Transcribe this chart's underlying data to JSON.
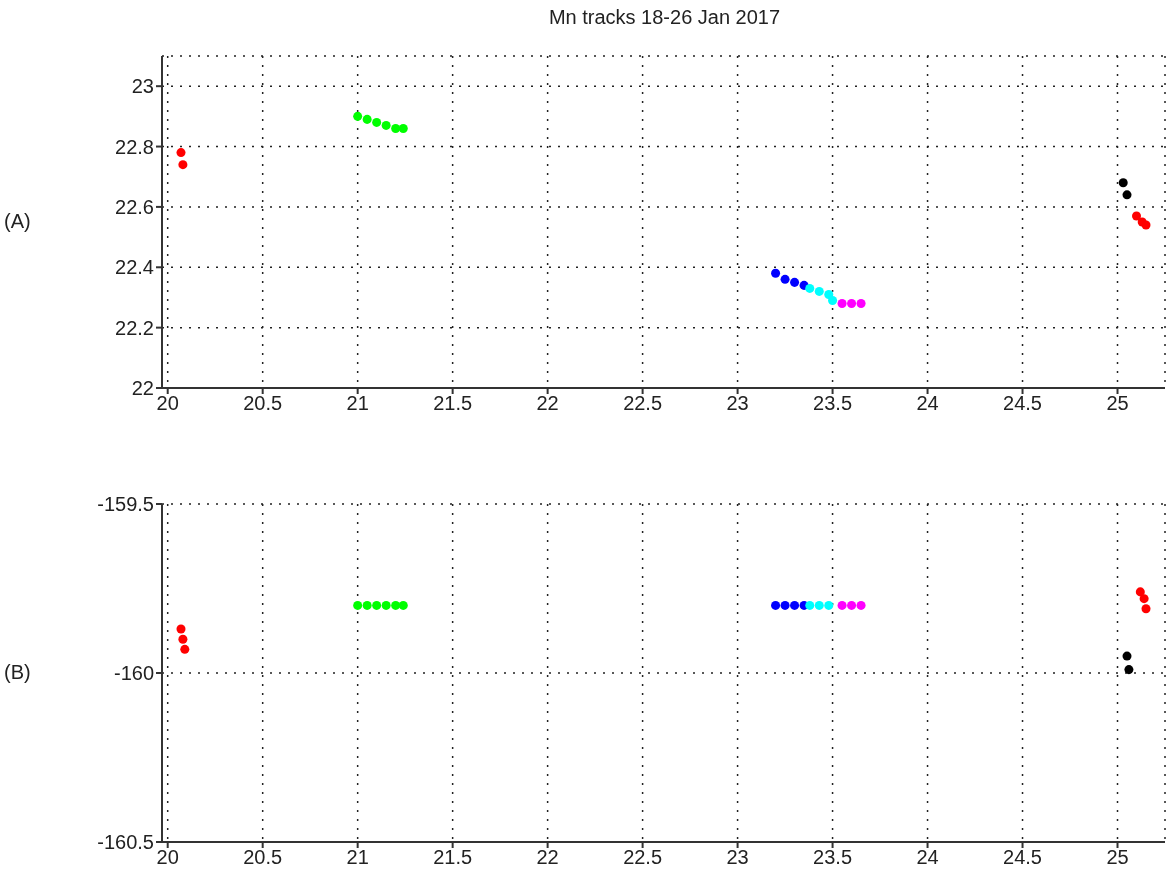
{
  "chart_data": [
    {
      "type": "scatter",
      "title": "Mn tracks 18-26 Jan 2017",
      "annotations": [
        "(A)"
      ],
      "xlim": [
        19.97,
        25.25
      ],
      "xticks": [
        20,
        20.5,
        21,
        21.5,
        22,
        22.5,
        23,
        23.5,
        24,
        24.5,
        25
      ],
      "ylim": [
        22,
        23.1
      ],
      "yticks": [
        22,
        22.2,
        22.4,
        22.6,
        22.8,
        23
      ],
      "grid": true,
      "marker": "circle",
      "series": [
        {
          "color": "#ff0000",
          "x": [
            20.07,
            20.08
          ],
          "values": [
            22.78,
            22.74
          ]
        },
        {
          "color": "#00ff00",
          "x": [
            21.0,
            21.05,
            21.1,
            21.15,
            21.2,
            21.24
          ],
          "values": [
            22.9,
            22.89,
            22.88,
            22.87,
            22.86,
            22.86
          ]
        },
        {
          "color": "#0000ff",
          "x": [
            23.2,
            23.25,
            23.3,
            23.35
          ],
          "values": [
            22.38,
            22.36,
            22.35,
            22.34
          ]
        },
        {
          "color": "#00ffff",
          "x": [
            23.38,
            23.43,
            23.48,
            23.5
          ],
          "values": [
            22.33,
            22.32,
            22.31,
            22.29
          ]
        },
        {
          "color": "#ff00ff",
          "x": [
            23.55,
            23.6,
            23.65
          ],
          "values": [
            22.28,
            22.28,
            22.28
          ]
        },
        {
          "color": "#000000",
          "x": [
            25.03,
            25.05
          ],
          "values": [
            22.68,
            22.64
          ]
        },
        {
          "color": "#ff0000",
          "x": [
            25.1,
            25.13,
            25.15
          ],
          "values": [
            22.57,
            22.55,
            22.54
          ]
        }
      ]
    },
    {
      "type": "scatter",
      "annotations": [
        "(B)"
      ],
      "xlim": [
        19.97,
        25.25
      ],
      "xticks": [
        20,
        20.5,
        21,
        21.5,
        22,
        22.5,
        23,
        23.5,
        24,
        24.5,
        25
      ],
      "ylim": [
        -160.5,
        -159.5
      ],
      "yticks": [
        -160.5,
        -160,
        -159.5
      ],
      "grid": true,
      "marker": "circle",
      "series": [
        {
          "color": "#ff0000",
          "x": [
            20.07,
            20.08,
            20.09
          ],
          "values": [
            -159.87,
            -159.9,
            -159.93
          ]
        },
        {
          "color": "#00ff00",
          "x": [
            21.0,
            21.05,
            21.1,
            21.15,
            21.2,
            21.24
          ],
          "values": [
            -159.8,
            -159.8,
            -159.8,
            -159.8,
            -159.8,
            -159.8
          ]
        },
        {
          "color": "#0000ff",
          "x": [
            23.2,
            23.25,
            23.3,
            23.35
          ],
          "values": [
            -159.8,
            -159.8,
            -159.8,
            -159.8
          ]
        },
        {
          "color": "#00ffff",
          "x": [
            23.38,
            23.43,
            23.48
          ],
          "values": [
            -159.8,
            -159.8,
            -159.8
          ]
        },
        {
          "color": "#ff00ff",
          "x": [
            23.55,
            23.6,
            23.65
          ],
          "values": [
            -159.8,
            -159.8,
            -159.8
          ]
        },
        {
          "color": "#ff0000",
          "x": [
            25.12,
            25.14,
            25.15
          ],
          "values": [
            -159.76,
            -159.78,
            -159.81
          ]
        },
        {
          "color": "#000000",
          "x": [
            25.05,
            25.06
          ],
          "values": [
            -159.95,
            -159.99
          ]
        }
      ]
    }
  ]
}
